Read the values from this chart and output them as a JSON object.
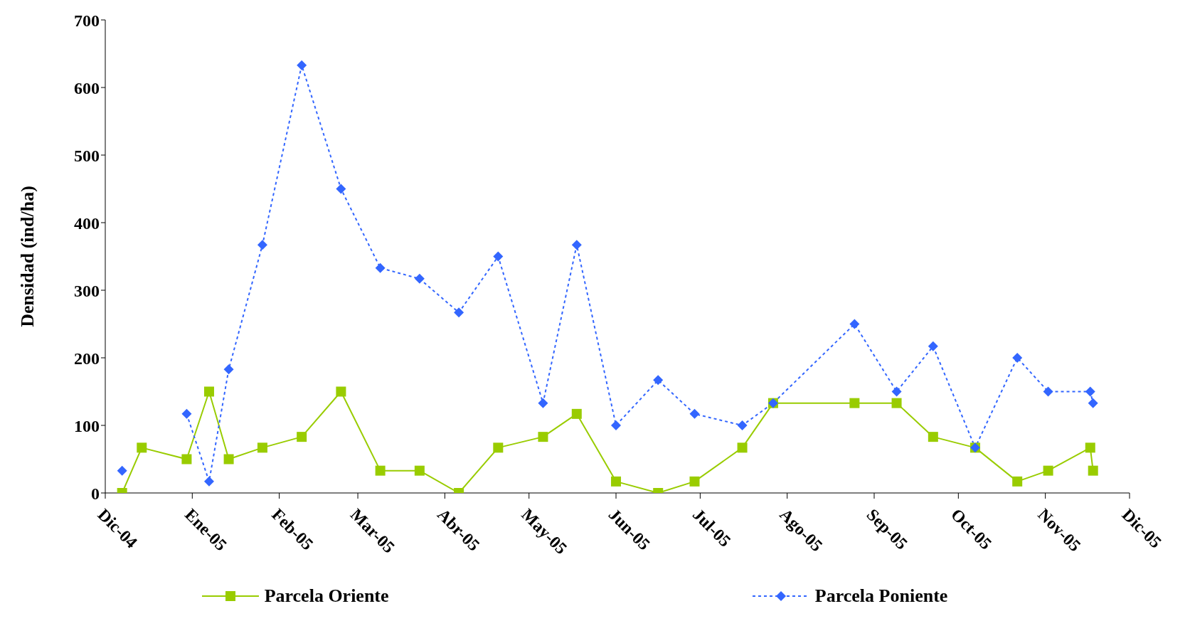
{
  "chart_data": {
    "type": "line",
    "ylabel": "Densidad (ind/ha)",
    "x": [
      "2004-12-07",
      "2004-12-14",
      "2004-12-30",
      "2005-01-07",
      "2005-01-14",
      "2005-01-26",
      "2005-02-09",
      "2005-02-23",
      "2005-03-09",
      "2005-03-23",
      "2005-04-06",
      "2005-04-20",
      "2005-05-06",
      "2005-05-18",
      "2005-06-01",
      "2005-06-16",
      "2005-06-29",
      "2005-07-16",
      "2005-07-27",
      "2005-08-25",
      "2005-09-09",
      "2005-09-22",
      "2005-10-07",
      "2005-10-22",
      "2005-11-02",
      "2005-11-17",
      "2005-11-18"
    ],
    "series": [
      {
        "name": "Parcela Oriente",
        "color": "#99cc00",
        "marker": "square",
        "line_style": "solid",
        "values": [
          0,
          67,
          50,
          150,
          50,
          67,
          83,
          150,
          33,
          33,
          0,
          67,
          83,
          117,
          17,
          0,
          17,
          67,
          133,
          133,
          133,
          83,
          67,
          17,
          33,
          67,
          33
        ]
      },
      {
        "name": "Parcela Poniente",
        "color": "#3366ff",
        "marker": "diamond",
        "line_style": "dashed",
        "values": [
          33,
          null,
          117,
          17,
          183,
          367,
          633,
          450,
          333,
          317,
          267,
          350,
          133,
          367,
          100,
          167,
          117,
          100,
          133,
          250,
          150,
          217,
          67,
          200,
          150,
          150,
          133
        ]
      }
    ],
    "xlim": [
      "2004-12-01",
      "2005-12-01"
    ],
    "xticks": [
      {
        "value": "2004-12-01",
        "label": "Dic-04"
      },
      {
        "value": "2005-01-01",
        "label": "Ene-05"
      },
      {
        "value": "2005-02-01",
        "label": "Feb-05"
      },
      {
        "value": "2005-03-01",
        "label": "Mar-05"
      },
      {
        "value": "2005-04-01",
        "label": "Abr-05"
      },
      {
        "value": "2005-05-01",
        "label": "May-05"
      },
      {
        "value": "2005-06-01",
        "label": "Jun-05"
      },
      {
        "value": "2005-07-01",
        "label": "Jul-05"
      },
      {
        "value": "2005-08-01",
        "label": "Ago-05"
      },
      {
        "value": "2005-09-01",
        "label": "Sep-05"
      },
      {
        "value": "2005-10-01",
        "label": "Oct-05"
      },
      {
        "value": "2005-11-01",
        "label": "Nov-05"
      },
      {
        "value": "2005-12-01",
        "label": "Dic-05"
      }
    ],
    "ylim": [
      0,
      700
    ],
    "yticks": [
      0,
      100,
      200,
      300,
      400,
      500,
      600,
      700
    ],
    "grid": false,
    "legend": "bottom"
  }
}
